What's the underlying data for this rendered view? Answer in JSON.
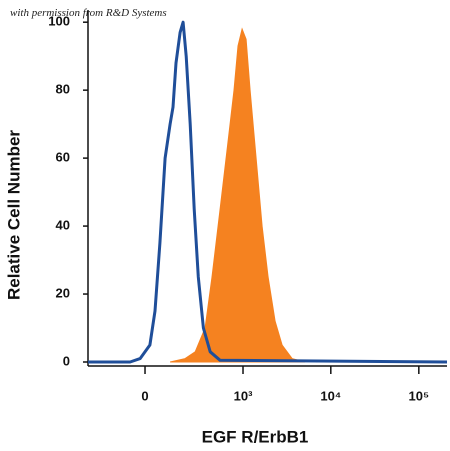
{
  "chart_data": {
    "type": "line",
    "note_text": "with permission from R&D Systems",
    "x_label": "EGF R/ErbB1",
    "y_label": "Relative Cell Number",
    "xlim": [
      -327,
      209000
    ],
    "ylim": [
      0,
      103
    ],
    "xticks": [
      0,
      {
        "value": 1000,
        "label": "10³"
      },
      {
        "value": 10000,
        "label": "10⁴"
      },
      {
        "value": 100000,
        "label": "10⁵"
      }
    ],
    "yticks": [
      0,
      20,
      40,
      60,
      80,
      100
    ],
    "series": [
      {
        "color": "#f58220",
        "fill": true,
        "x": [
          109,
          194,
          267,
          357,
          434,
          541,
          672,
          788,
          876,
          975,
          1085,
          1206,
          1411,
          1652,
          1934,
          2324,
          2792,
          3630,
          5101
        ],
        "values": [
          0,
          1,
          3,
          10,
          25,
          45,
          65,
          80,
          93,
          98,
          95,
          80,
          60,
          40,
          25,
          12,
          5,
          1,
          0
        ]
      },
      {
        "color": "#1f4e99",
        "fill": false,
        "x": [
          -327,
          -62,
          -20,
          20,
          41,
          62,
          85,
          109,
          124,
          140,
          163,
          181,
          201,
          229,
          259,
          293,
          340,
          412,
          541,
          209000
        ],
        "values": [
          0,
          0,
          1,
          5,
          15,
          35,
          60,
          70,
          75,
          88,
          97,
          100,
          90,
          70,
          45,
          25,
          10,
          3,
          0.5,
          0
        ]
      }
    ]
  }
}
